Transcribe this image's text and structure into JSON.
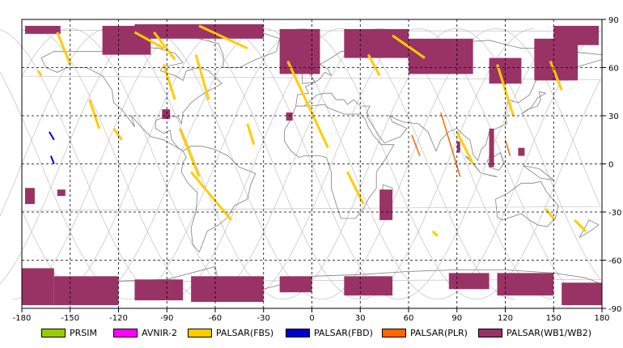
{
  "map": {
    "lon_range": [
      -180,
      180
    ],
    "lat_range": [
      -90,
      90
    ],
    "x_ticks": [
      -180,
      -150,
      -120,
      -90,
      -60,
      -30,
      0,
      30,
      60,
      90,
      120,
      150,
      180
    ],
    "y_ticks": [
      90,
      60,
      30,
      0,
      -30,
      -60,
      -90
    ],
    "colors": {
      "PRSIM": "#99cc00",
      "AVNIR-2": "#ff00ff",
      "PALSAR(FBS)": "#ffcc00",
      "PALSAR(FBD)": "#0000cc",
      "PALSAR(PLR)": "#ff6600",
      "PALSAR(WB1/WB2)": "#993366",
      "orbit": "#c0c0c0",
      "coast": "#808080",
      "grid": "#000000"
    },
    "observations": {
      "wb": [
        {
          "lon": [
            -178,
            -156
          ],
          "lat": [
            81,
            86
          ]
        },
        {
          "lon": [
            -130,
            -100
          ],
          "lat": [
            68,
            86
          ]
        },
        {
          "lon": [
            -110,
            -30
          ],
          "lat": [
            78,
            87
          ]
        },
        {
          "lon": [
            -20,
            5
          ],
          "lat": [
            56,
            84
          ]
        },
        {
          "lon": [
            20,
            60
          ],
          "lat": [
            66,
            84
          ]
        },
        {
          "lon": [
            60,
            100
          ],
          "lat": [
            56,
            78
          ]
        },
        {
          "lon": [
            110,
            130
          ],
          "lat": [
            50,
            66
          ]
        },
        {
          "lon": [
            138,
            165
          ],
          "lat": [
            52,
            78
          ]
        },
        {
          "lon": [
            150,
            178
          ],
          "lat": [
            74,
            86
          ]
        },
        {
          "lon": [
            -93,
            -88
          ],
          "lat": [
            28,
            34
          ]
        },
        {
          "lon": [
            -178,
            -172
          ],
          "lat": [
            -25,
            -15
          ]
        },
        {
          "lon": [
            -158,
            -153
          ],
          "lat": [
            -20,
            -16
          ]
        },
        {
          "lon": [
            42,
            50
          ],
          "lat": [
            -35,
            -16
          ]
        },
        {
          "lon": [
            -16,
            -12
          ],
          "lat": [
            27,
            32
          ]
        },
        {
          "lon": [
            110,
            113
          ],
          "lat": [
            -2,
            22
          ]
        },
        {
          "lon": [
            128,
            132
          ],
          "lat": [
            5,
            10
          ]
        },
        {
          "lon": [
            90,
            92
          ],
          "lat": [
            7,
            14
          ]
        }
      ],
      "wb_south": [
        {
          "lon": [
            -180,
            -160
          ],
          "lat": [
            -88,
            -65
          ]
        },
        {
          "lon": [
            -160,
            -120
          ],
          "lat": [
            -88,
            -70
          ]
        },
        {
          "lon": [
            -110,
            -80
          ],
          "lat": [
            -85,
            -72
          ]
        },
        {
          "lon": [
            -75,
            -30
          ],
          "lat": [
            -86,
            -70
          ]
        },
        {
          "lon": [
            -20,
            0
          ],
          "lat": [
            -80,
            -70
          ]
        },
        {
          "lon": [
            20,
            50
          ],
          "lat": [
            -82,
            -70
          ]
        },
        {
          "lon": [
            85,
            110
          ],
          "lat": [
            -78,
            -68
          ]
        },
        {
          "lon": [
            115,
            150
          ],
          "lat": [
            -82,
            -68
          ]
        },
        {
          "lon": [
            155,
            180
          ],
          "lat": [
            -88,
            -74
          ]
        }
      ],
      "fbs": [
        {
          "lon0": -158,
          "lat0": 82,
          "lon1": -150,
          "lat1": 62
        },
        {
          "lon0": -92,
          "lat0": 62,
          "lon1": -85,
          "lat1": 40
        },
        {
          "lon0": -72,
          "lat0": 68,
          "lon1": -64,
          "lat1": 40
        },
        {
          "lon0": -98,
          "lat0": 82,
          "lon1": -85,
          "lat1": 65
        },
        {
          "lon0": -70,
          "lat0": 86,
          "lon1": -40,
          "lat1": 72
        },
        {
          "lon0": -110,
          "lat0": 82,
          "lon1": -92,
          "lat1": 72
        },
        {
          "lon0": -75,
          "lat0": -5,
          "lon1": -50,
          "lat1": -35
        },
        {
          "lon0": -82,
          "lat0": 22,
          "lon1": -70,
          "lat1": -8
        },
        {
          "lon0": -138,
          "lat0": 40,
          "lon1": -132,
          "lat1": 22
        },
        {
          "lon0": -15,
          "lat0": 64,
          "lon1": 10,
          "lat1": 10
        },
        {
          "lon0": 50,
          "lat0": 80,
          "lon1": 70,
          "lat1": 66
        },
        {
          "lon0": 35,
          "lat0": 68,
          "lon1": 42,
          "lat1": 55
        },
        {
          "lon0": 115,
          "lat0": 62,
          "lon1": 125,
          "lat1": 30
        },
        {
          "lon0": 90,
          "lat0": 20,
          "lon1": 100,
          "lat1": 0
        },
        {
          "lon0": 22,
          "lat0": -5,
          "lon1": 32,
          "lat1": -25
        },
        {
          "lon0": 75,
          "lat0": -42,
          "lon1": 78,
          "lat1": -45
        },
        {
          "lon0": 148,
          "lat0": 64,
          "lon1": 155,
          "lat1": 46
        },
        {
          "lon0": -170,
          "lat0": 58,
          "lon1": -168,
          "lat1": 55
        },
        {
          "lon0": 163,
          "lat0": -35,
          "lon1": 170,
          "lat1": -42
        },
        {
          "lon0": 145,
          "lat0": -28,
          "lon1": 150,
          "lat1": -34
        },
        {
          "lon0": -40,
          "lat0": 25,
          "lon1": -36,
          "lat1": 12
        },
        {
          "lon0": -123,
          "lat0": 22,
          "lon1": -118,
          "lat1": 15
        }
      ],
      "fbd": [
        {
          "lon0": -163,
          "lat0": 20,
          "lon1": -160,
          "lat1": 15
        },
        {
          "lon0": -162,
          "lat0": 5,
          "lon1": -160,
          "lat1": 0
        }
      ],
      "plr": [
        {
          "lon0": 62,
          "lat0": 18,
          "lon1": 67,
          "lat1": 5
        },
        {
          "lon0": 80,
          "lat0": 32,
          "lon1": 92,
          "lat1": -8
        },
        {
          "lon0": 120,
          "lat0": 15,
          "lon1": 123,
          "lat1": 5
        }
      ]
    }
  },
  "legend": [
    {
      "label": "PRSIM",
      "color": "#99cc00"
    },
    {
      "label": "AVNIR-2",
      "color": "#ff00ff"
    },
    {
      "label": "PALSAR(FBS)",
      "color": "#ffcc00"
    },
    {
      "label": "PALSAR(FBD)",
      "color": "#0000cc"
    },
    {
      "label": "PALSAR(PLR)",
      "color": "#ff6600"
    },
    {
      "label": "PALSAR(WB1/WB2)",
      "color": "#993366"
    }
  ]
}
